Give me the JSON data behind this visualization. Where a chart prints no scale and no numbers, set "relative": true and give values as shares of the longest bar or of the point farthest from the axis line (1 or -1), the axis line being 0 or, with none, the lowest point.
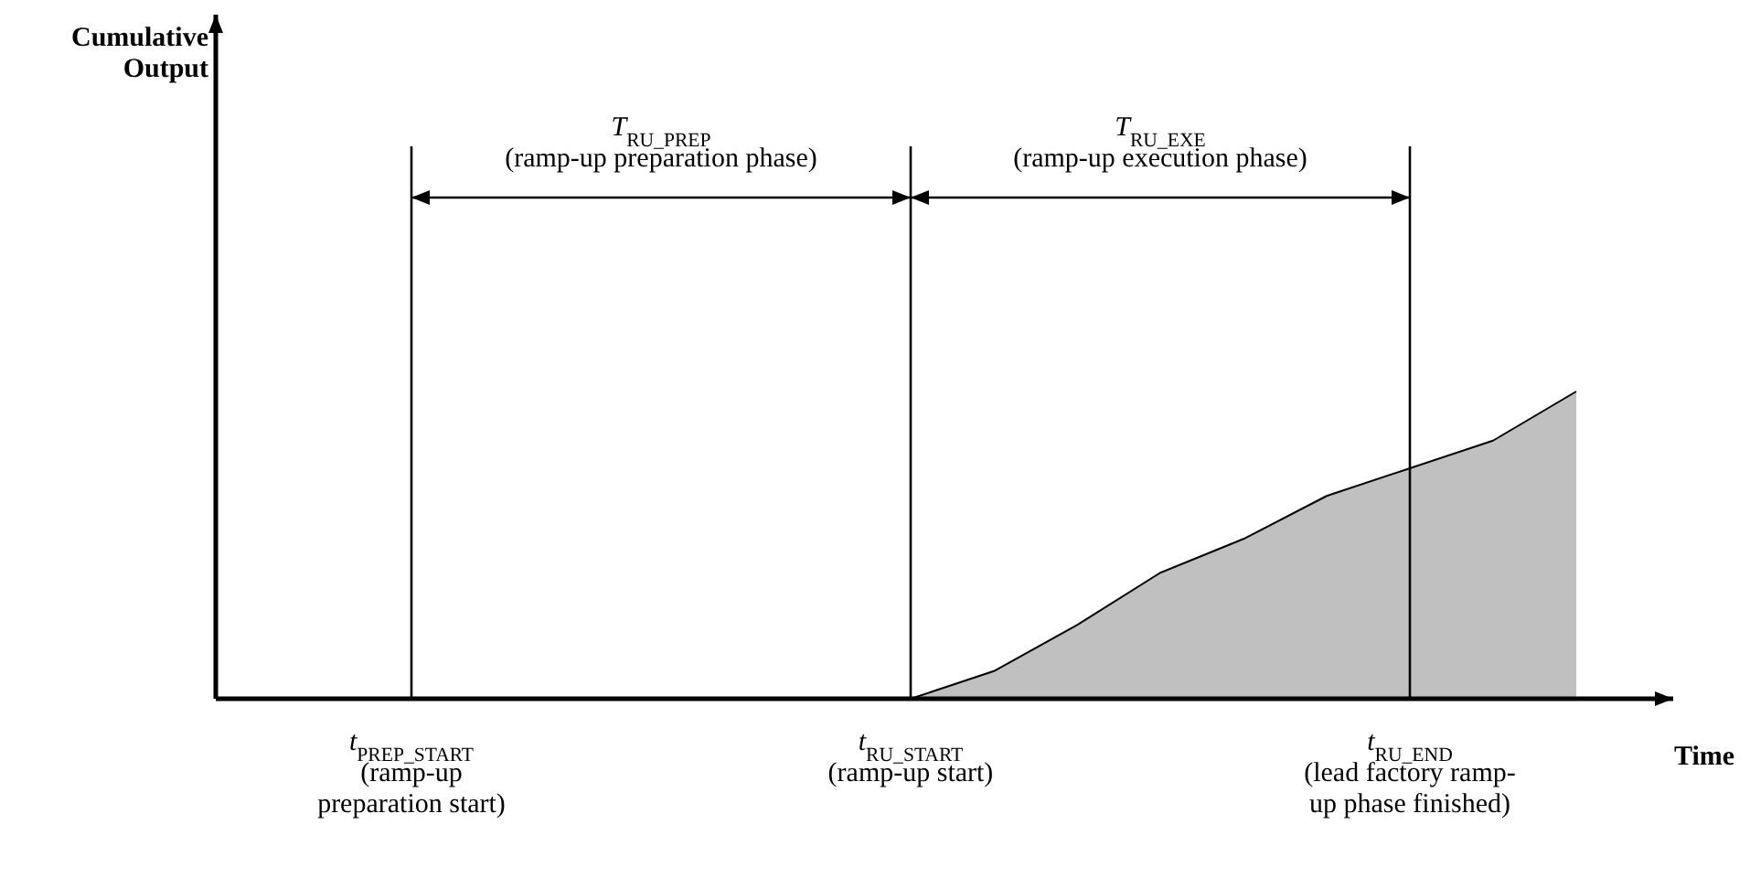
{
  "chart_data": {
    "type": "area",
    "xlabel": "Time",
    "relative": true,
    "tick_labels": "x",
    "categories": [
      null,
      null,
      "t$_{PREP_START}$\n(ramp-up\npreparation start)",
      null,
      null,
      null,
      null,
      null,
      "t$_{RU_START}$\n(ramp-up start)",
      null,
      null,
      null,
      null,
      null,
      "t$_{RU_END}$\n(lead factory ramp-\nup phase finished)",
      null,
      null
    ],
    "series": [
      {
        "color": "#c0c0c0",
        "values": [
          null,
          null,
          null,
          null,
          null,
          null,
          null,
          null,
          0,
          0.09,
          0.24,
          0.41,
          0.52,
          0.66,
          0.75,
          0.84,
          1
        ]
      }
    ],
    "ref_lines": [
      {
        "axis": "x",
        "value": "t$_{PREP_START}$\n(ramp-up\npreparation start)"
      },
      {
        "axis": "x",
        "value": "t$_{RU_START}$\n(ramp-up start)"
      },
      {
        "axis": "x",
        "value": "t$_{RU_END}$\n(lead factory ramp-\nup phase finished)"
      }
    ],
    "annotations": [
      "T$_{RU_PREP}$\n(ramp-up preparation phase)",
      "T$_{RU_EXE}$\n(ramp-up execution phase)",
      "Cumulative\nOutput"
    ]
  }
}
